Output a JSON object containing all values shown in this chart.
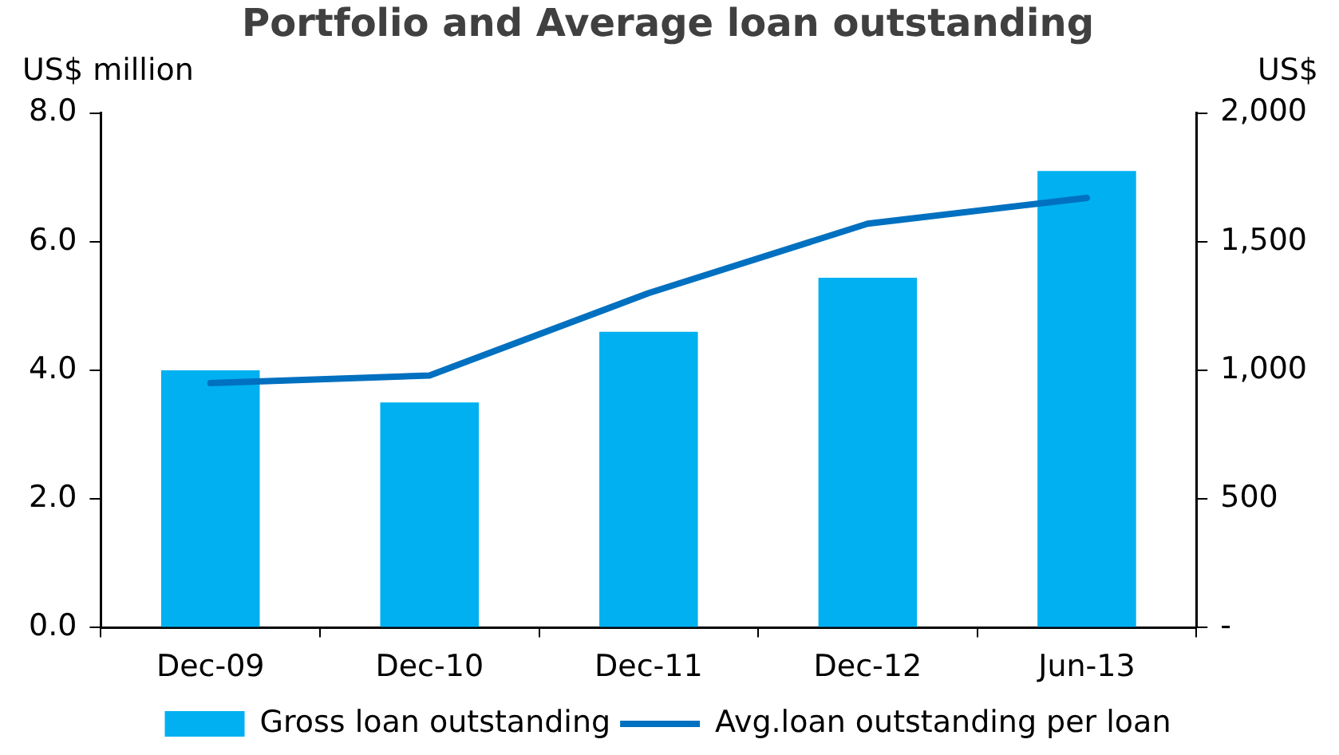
{
  "chart_data": {
    "type": "bar",
    "title": "Portfolio and Average loan outstanding",
    "ylabel": "US$ million",
    "y2label": "US$",
    "categories": [
      "Dec-09",
      "Dec-10",
      "Dec-11",
      "Dec-12",
      "Jun-13"
    ],
    "series": [
      {
        "name": "Gross loan outstanding",
        "color": "#00b0f0",
        "values": [
          4.0,
          3.5,
          4.6,
          5.44,
          7.1
        ]
      },
      {
        "name": "Avg.loan outstanding per loan",
        "type": "line",
        "axis": "y2",
        "color": "#0070c0",
        "values": [
          950,
          980,
          1300,
          1570,
          1670
        ]
      }
    ],
    "ylim": [
      0,
      8
    ],
    "yticks": [
      {
        "value": 0,
        "label": "0.0"
      },
      {
        "value": 2,
        "label": "2.0"
      },
      {
        "value": 4,
        "label": "4.0"
      },
      {
        "value": 6,
        "label": "6.0"
      },
      {
        "value": 8,
        "label": "8.0"
      }
    ],
    "y2lim": [
      0,
      2000
    ],
    "y2ticks": [
      {
        "value": 0,
        "label": "-"
      },
      500,
      {
        "value": 1000,
        "label": "1,000"
      },
      {
        "value": 1500,
        "label": "1,500"
      },
      {
        "value": 2000,
        "label": "2,000"
      }
    ],
    "grid": false,
    "legend": "bottom",
    "marker": "none",
    "line_style": "solid"
  }
}
